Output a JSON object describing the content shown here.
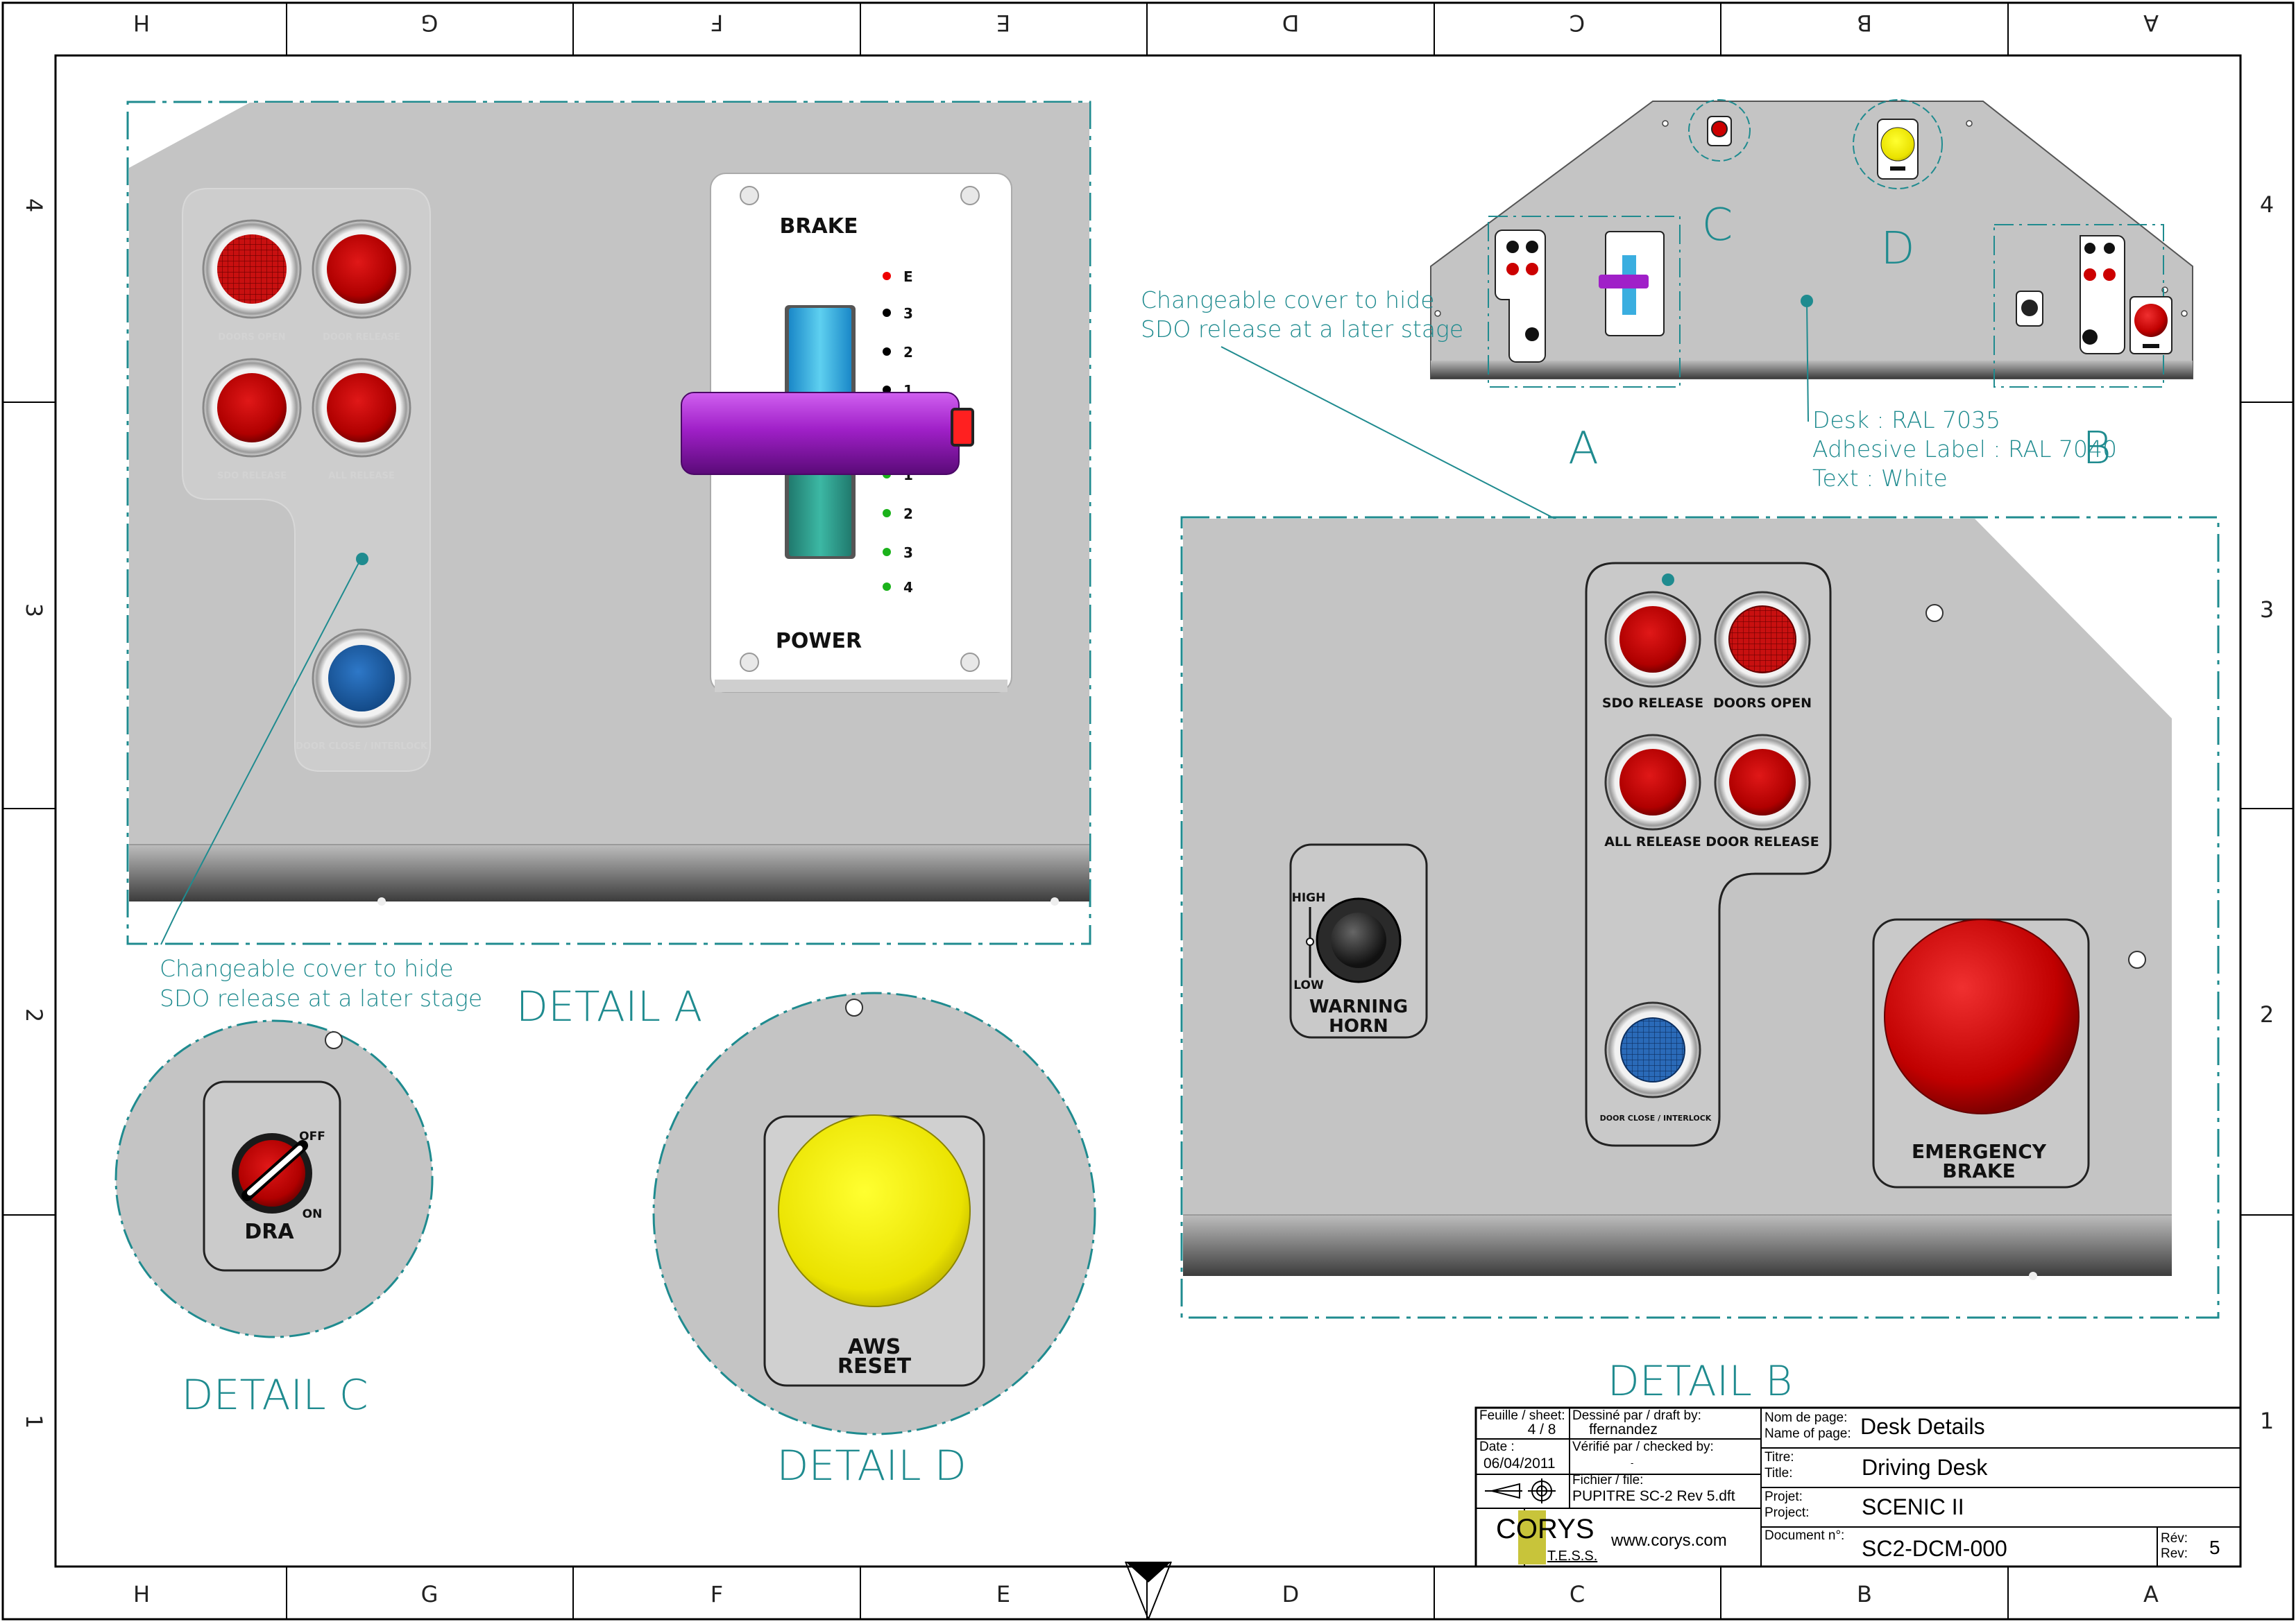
{
  "grid": {
    "cols": [
      "H",
      "G",
      "F",
      "E",
      "D",
      "C",
      "B",
      "A"
    ],
    "rows": [
      "4",
      "3",
      "2",
      "1"
    ]
  },
  "detail_a": {
    "title": "DETAIL A",
    "panel_labels": [
      "DOORS OPEN",
      "DOOR RELEASE",
      "SDO RELEASE",
      "ALL RELEASE",
      "DOOR CLOSE / INTERLOCK"
    ],
    "lever": {
      "top_label": "BRAKE",
      "bottom_label": "POWER",
      "brake_steps": [
        "E",
        "3",
        "2",
        "1"
      ],
      "power_steps": [
        "1",
        "2",
        "3",
        "4"
      ]
    },
    "annotation_line1": "Changeable cover to hide",
    "annotation_line2": "SDO release at a later stage"
  },
  "overview": {
    "label_a": "A",
    "label_b": "B",
    "label_c": "C",
    "label_d": "D",
    "annotation_line1": "Changeable cover to hide",
    "annotation_line2": "SDO release at a later stage",
    "desk_line1": "Desk : RAL 7035",
    "desk_line2": "Adhesive Label : RAL 7040",
    "desk_line3": "Text : White"
  },
  "detail_b": {
    "title": "DETAIL B",
    "sdo_release": "SDO RELEASE",
    "doors_open": "DOORS OPEN",
    "all_release": "ALL RELEASE",
    "door_release": "DOOR RELEASE",
    "door_close": "DOOR CLOSE / INTERLOCK",
    "horn_high": "HIGH",
    "horn_low": "LOW",
    "horn_line1": "WARNING",
    "horn_line2": "HORN",
    "emergency_line1": "EMERGENCY",
    "emergency_line2": "BRAKE"
  },
  "detail_c": {
    "title": "DETAIL C",
    "off": "OFF",
    "on": "ON",
    "label": "DRA"
  },
  "detail_d": {
    "title": "DETAIL D",
    "line1": "AWS",
    "line2": "RESET"
  },
  "title_block": {
    "sheet_label": "Feuille / sheet:",
    "sheet_value": "4 / 8",
    "drawn_label": "Dessiné par / draft by:",
    "drawn_value": "ffernandez",
    "date_label": "Date :",
    "date_value": "06/04/2011",
    "checked_label": "Vérifié par / checked by:",
    "checked_value": "-",
    "file_label": "Fichier / file:",
    "file_value": "PUPITRE SC-2 Rev 5.dft",
    "logo_text": "CORYS",
    "logo_sub": "T.E.S.S.",
    "website": "www.corys.com",
    "page_name_label1": "Nom de page:",
    "page_name_label2": "Name of page:",
    "page_name_value": "Desk Details",
    "title_label1": "Titre:",
    "title_label2": "Title:",
    "title_value": "Driving Desk",
    "project_label1": "Projet:",
    "project_label2": "Project:",
    "project_value": "SCENIC II",
    "doc_label": "Document n°:",
    "doc_value": "SC2-DCM-000",
    "rev_label1": "Rév:",
    "rev_label2": "Rev:",
    "rev_value": "5"
  },
  "colors": {
    "teal": "#1f8b8f",
    "panel_grey": "#c4c4c4",
    "red_button": "#c40000",
    "blue_button": "#1a5fa8",
    "yellow_button": "#f2ee00",
    "lever_purple": "#a020c8",
    "logo_olive": "#c8c43a"
  }
}
